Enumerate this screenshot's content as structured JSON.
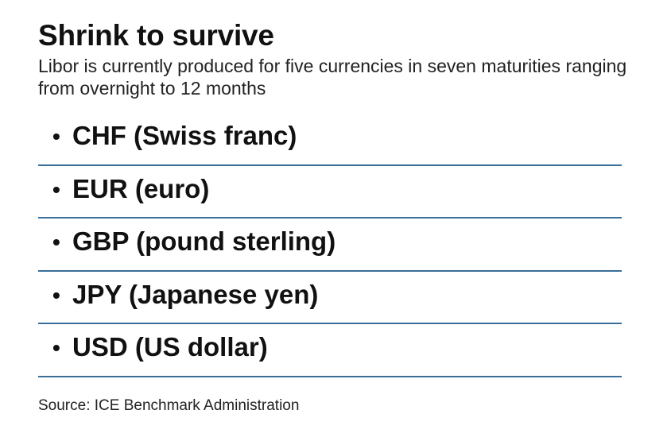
{
  "title": "Shrink to survive",
  "subtitle": "Libor is currently produced for five currencies in seven maturities ranging from overnight to 12 months",
  "items": [
    {
      "label": "CHF (Swiss franc)"
    },
    {
      "label": "EUR (euro)"
    },
    {
      "label": "GBP (pound sterling)"
    },
    {
      "label": "JPY (Japanese yen)"
    },
    {
      "label": "USD (US dollar)"
    }
  ],
  "bullet": "•",
  "divider_color": "#3a6f99",
  "source": "Source: ICE Benchmark Administration"
}
